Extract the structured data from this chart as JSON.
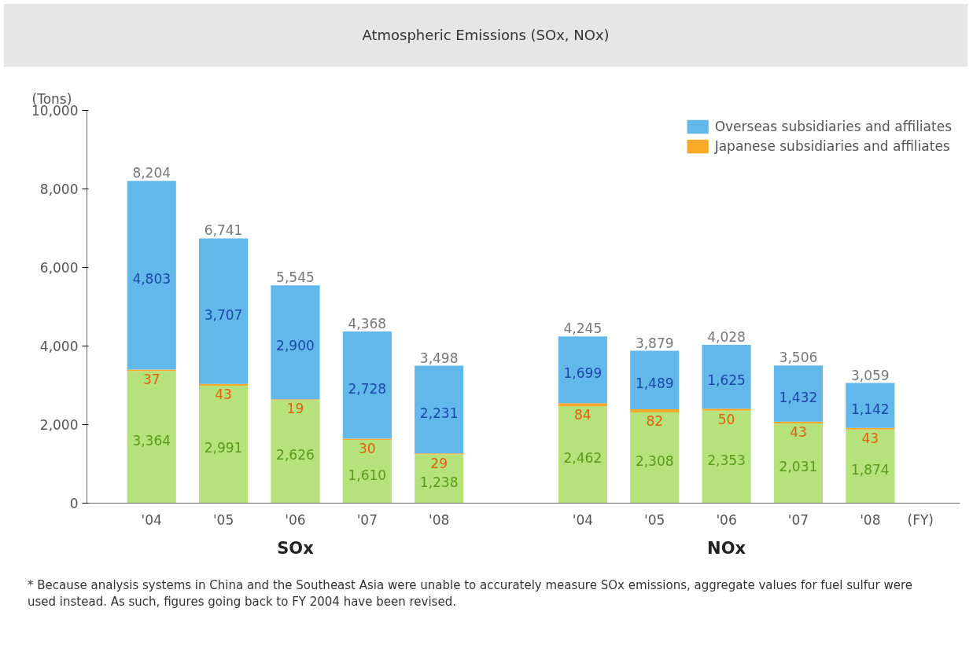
{
  "chart_data": {
    "type": "bar",
    "stacked": true,
    "title": "Atmospheric Emissions (SOx, NOx)",
    "ylabel": "(Tons)",
    "xlabel": "(FY)",
    "categories": [
      "'04",
      "'05",
      "'06",
      "'07",
      "'08",
      null,
      "'04",
      "'05",
      "'06",
      "'07",
      "'08"
    ],
    "series": [
      {
        "color": "#b5e27a",
        "values": [
          3364,
          2991,
          2626,
          1610,
          1238,
          null,
          2462,
          2308,
          2353,
          2031,
          1874
        ],
        "value_labels": [
          "3,364",
          "2,991",
          "2,626",
          "1,610",
          "1,238",
          null,
          "2,462",
          "2,308",
          "2,353",
          "2,031",
          "1,874"
        ]
      },
      {
        "name": "Japanese subsidiaries and affiliates",
        "color": "#f7a928",
        "values": [
          37,
          43,
          19,
          30,
          29,
          null,
          84,
          82,
          50,
          43,
          43
        ],
        "value_labels": [
          "37",
          "43",
          "19",
          "30",
          "29",
          null,
          "84",
          "82",
          "50",
          "43",
          "43"
        ]
      },
      {
        "name": "Overseas subsidiaries and affiliates",
        "color": "#62b8ea",
        "values": [
          4803,
          3707,
          2900,
          2728,
          2231,
          null,
          1699,
          1489,
          1625,
          1432,
          1142
        ],
        "value_labels": [
          "4,803",
          "3,707",
          "2,900",
          "2,728",
          "2,231",
          null,
          "1,699",
          "1,489",
          "1,625",
          "1,432",
          "1,142"
        ]
      }
    ],
    "totals": [
      "8,204",
      "6,741",
      "5,545",
      "4,368",
      "3,498",
      null,
      "4,245",
      "3,879",
      "4,028",
      "3,506",
      "3,059"
    ],
    "ylim": [
      0,
      10000
    ],
    "yticks": [
      0,
      {
        "value": 2000,
        "label": "2,000"
      },
      {
        "value": 4000,
        "label": "4,000"
      },
      {
        "value": 6000,
        "label": "6,000"
      },
      {
        "value": 8000,
        "label": "8,000"
      },
      {
        "value": 10000,
        "label": "10,000"
      }
    ],
    "grid": false,
    "legend": "top right",
    "annotations": [
      "SOx",
      "NOx",
      "* Because analysis systems in China and the Southeast Asia were unable to accurately measure SOx emissions, aggregate values for fuel sulfur were used instead. As such, figures going back to FY 2004 have been revised."
    ]
  }
}
